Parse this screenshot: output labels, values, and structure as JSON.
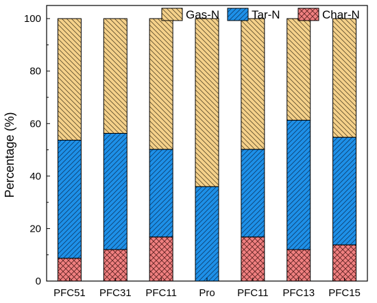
{
  "chart_data": {
    "type": "bar",
    "stacked": true,
    "categories": [
      "PFC51",
      "PFC31",
      "PFC11",
      "Pro",
      "PFC11",
      "PFC13",
      "PFC15"
    ],
    "series": [
      {
        "name": "Char-N",
        "values": [
          8.7,
          12.0,
          16.8,
          0,
          16.8,
          12.0,
          13.8
        ],
        "color": "#f08080",
        "pattern": "crosshatch"
      },
      {
        "name": "Tar-N",
        "values": [
          45.0,
          44.3,
          33.4,
          36.0,
          33.4,
          49.3,
          41.0
        ],
        "color": "#1e90e8",
        "pattern": "diagonal-right"
      },
      {
        "name": "Gas-N",
        "values": [
          46.3,
          43.7,
          49.8,
          64.0,
          49.8,
          38.7,
          45.2
        ],
        "color": "#f5d18a",
        "pattern": "diagonal-left"
      }
    ],
    "legend_order": [
      "Gas-N",
      "Tar-N",
      "Char-N"
    ],
    "legend_position": "top",
    "xlabel": "",
    "ylabel": "Percentage (%)",
    "ylim": [
      0,
      105
    ],
    "yticks": [
      0,
      20,
      40,
      60,
      80,
      100
    ],
    "grid": false
  }
}
